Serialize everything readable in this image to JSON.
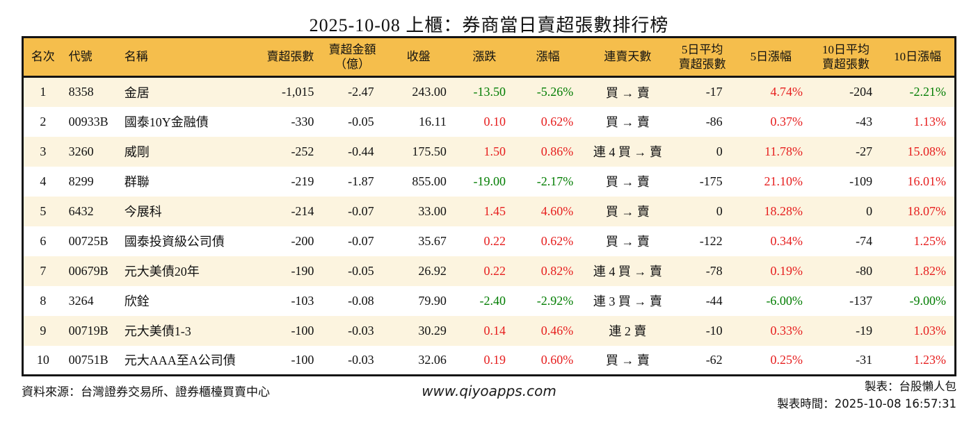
{
  "title": "2025-10-08 上櫃：券商當日賣超張數排行榜",
  "colors": {
    "up_red": "#e61e1e",
    "down_green": "#027d02",
    "header_bg": "#f5be4c",
    "row_alt_bg": "#fcf4df",
    "table_border": "#141414"
  },
  "chart_data": {
    "type": "table",
    "columns": [
      {
        "key": "rank",
        "label": "名次",
        "align": "center"
      },
      {
        "key": "code",
        "label": "代號",
        "align": "left"
      },
      {
        "key": "name",
        "label": "名稱",
        "align": "left"
      },
      {
        "key": "qty",
        "label": "賣超張數",
        "align": "right"
      },
      {
        "key": "amt",
        "label": "賣超金額\n（億）",
        "align": "right"
      },
      {
        "key": "close",
        "label": "收盤",
        "align": "right"
      },
      {
        "key": "chg",
        "label": "漲跌",
        "align": "right"
      },
      {
        "key": "pct",
        "label": "漲幅",
        "align": "right"
      },
      {
        "key": "streak",
        "label": "連賣天數",
        "align": "center"
      },
      {
        "key": "avg5",
        "label": "5日平均\n賣超張數",
        "align": "right"
      },
      {
        "key": "pct5",
        "label": "5日漲幅",
        "align": "right"
      },
      {
        "key": "avg10",
        "label": "10日平均\n賣超張數",
        "align": "right"
      },
      {
        "key": "pct10",
        "label": "10日漲幅",
        "align": "right"
      }
    ],
    "rows": [
      {
        "rank": "1",
        "code": "8358",
        "name": "金居",
        "qty": "-1,015",
        "amt": "-2.47",
        "close": "243.00",
        "chg": "-13.50",
        "chg_dir": "down",
        "pct": "-5.26%",
        "pct_dir": "down",
        "streak": "買 → 賣",
        "avg5": "-17",
        "pct5": "4.74%",
        "pct5_dir": "up",
        "avg10": "-204",
        "pct10": "-2.21%",
        "pct10_dir": "down"
      },
      {
        "rank": "2",
        "code": "00933B",
        "name": "國泰10Y金融債",
        "qty": "-330",
        "amt": "-0.05",
        "close": "16.11",
        "chg": "0.10",
        "chg_dir": "up",
        "pct": "0.62%",
        "pct_dir": "up",
        "streak": "買 → 賣",
        "avg5": "-86",
        "pct5": "0.37%",
        "pct5_dir": "up",
        "avg10": "-43",
        "pct10": "1.13%",
        "pct10_dir": "up"
      },
      {
        "rank": "3",
        "code": "3260",
        "name": "威剛",
        "qty": "-252",
        "amt": "-0.44",
        "close": "175.50",
        "chg": "1.50",
        "chg_dir": "up",
        "pct": "0.86%",
        "pct_dir": "up",
        "streak": "連 4 買 → 賣",
        "avg5": "0",
        "pct5": "11.78%",
        "pct5_dir": "up",
        "avg10": "-27",
        "pct10": "15.08%",
        "pct10_dir": "up"
      },
      {
        "rank": "4",
        "code": "8299",
        "name": "群聯",
        "qty": "-219",
        "amt": "-1.87",
        "close": "855.00",
        "chg": "-19.00",
        "chg_dir": "down",
        "pct": "-2.17%",
        "pct_dir": "down",
        "streak": "買 → 賣",
        "avg5": "-175",
        "pct5": "21.10%",
        "pct5_dir": "up",
        "avg10": "-109",
        "pct10": "16.01%",
        "pct10_dir": "up"
      },
      {
        "rank": "5",
        "code": "6432",
        "name": "今展科",
        "qty": "-214",
        "amt": "-0.07",
        "close": "33.00",
        "chg": "1.45",
        "chg_dir": "up",
        "pct": "4.60%",
        "pct_dir": "up",
        "streak": "買 → 賣",
        "avg5": "0",
        "pct5": "18.28%",
        "pct5_dir": "up",
        "avg10": "0",
        "pct10": "18.07%",
        "pct10_dir": "up"
      },
      {
        "rank": "6",
        "code": "00725B",
        "name": "國泰投資級公司債",
        "qty": "-200",
        "amt": "-0.07",
        "close": "35.67",
        "chg": "0.22",
        "chg_dir": "up",
        "pct": "0.62%",
        "pct_dir": "up",
        "streak": "買 → 賣",
        "avg5": "-122",
        "pct5": "0.34%",
        "pct5_dir": "up",
        "avg10": "-74",
        "pct10": "1.25%",
        "pct10_dir": "up"
      },
      {
        "rank": "7",
        "code": "00679B",
        "name": "元大美債20年",
        "qty": "-190",
        "amt": "-0.05",
        "close": "26.92",
        "chg": "0.22",
        "chg_dir": "up",
        "pct": "0.82%",
        "pct_dir": "up",
        "streak": "連 4 買 → 賣",
        "avg5": "-78",
        "pct5": "0.19%",
        "pct5_dir": "up",
        "avg10": "-80",
        "pct10": "1.82%",
        "pct10_dir": "up"
      },
      {
        "rank": "8",
        "code": "3264",
        "name": "欣銓",
        "qty": "-103",
        "amt": "-0.08",
        "close": "79.90",
        "chg": "-2.40",
        "chg_dir": "down",
        "pct": "-2.92%",
        "pct_dir": "down",
        "streak": "連 3 買 → 賣",
        "avg5": "-44",
        "pct5": "-6.00%",
        "pct5_dir": "down",
        "avg10": "-137",
        "pct10": "-9.00%",
        "pct10_dir": "down"
      },
      {
        "rank": "9",
        "code": "00719B",
        "name": "元大美債1-3",
        "qty": "-100",
        "amt": "-0.03",
        "close": "30.29",
        "chg": "0.14",
        "chg_dir": "up",
        "pct": "0.46%",
        "pct_dir": "up",
        "streak": "連 2 賣",
        "avg5": "-10",
        "pct5": "0.33%",
        "pct5_dir": "up",
        "avg10": "-19",
        "pct10": "1.03%",
        "pct10_dir": "up"
      },
      {
        "rank": "10",
        "code": "00751B",
        "name": "元大AAA至A公司債",
        "qty": "-100",
        "amt": "-0.03",
        "close": "32.06",
        "chg": "0.19",
        "chg_dir": "up",
        "pct": "0.60%",
        "pct_dir": "up",
        "streak": "買 → 賣",
        "avg5": "-62",
        "pct5": "0.25%",
        "pct5_dir": "up",
        "avg10": "-31",
        "pct10": "1.23%",
        "pct10_dir": "up"
      }
    ]
  },
  "footer": {
    "source": "資料來源：台灣證券交易所、證券櫃檯買賣中心",
    "website": "www.qiyoapps.com",
    "maker": "製表：台股懶人包",
    "made_at": "製表時間：2025-10-08 16:57:31"
  }
}
